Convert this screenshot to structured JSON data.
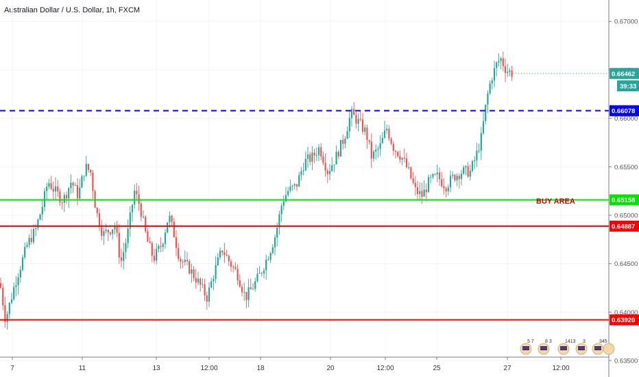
{
  "chart_title": "Australian Dollar / U.S. Dollar, 1h, FXCM",
  "colors": {
    "up": "#26a69a",
    "down": "#ef5350",
    "blue": "#0000ff",
    "green": "#00e600",
    "red": "#ff0000"
  },
  "chart_data": {
    "type": "candlestick",
    "title": "Australian Dollar / U.S. Dollar, 1h, FXCM",
    "ylim": [
      0.635,
      0.6715
    ],
    "y_ticks": [
      "0.67000",
      "0.66500",
      "0.66000",
      "0.65500",
      "0.65000",
      "0.64500",
      "0.64000",
      "0.63500"
    ],
    "x_ticks": [
      "7",
      "11",
      "13",
      "12:00",
      "18",
      "20",
      "12:00",
      "25",
      "27",
      "12:00"
    ],
    "price_path": [
      [
        0,
        0.643
      ],
      [
        8,
        0.6392
      ],
      [
        22,
        0.643
      ],
      [
        40,
        0.647
      ],
      [
        52,
        0.6485
      ],
      [
        62,
        0.651
      ],
      [
        70,
        0.6535
      ],
      [
        80,
        0.6525
      ],
      [
        92,
        0.6515
      ],
      [
        104,
        0.6535
      ],
      [
        114,
        0.652
      ],
      [
        124,
        0.655
      ],
      [
        132,
        0.6545
      ],
      [
        140,
        0.6505
      ],
      [
        150,
        0.648
      ],
      [
        160,
        0.6485
      ],
      [
        168,
        0.649
      ],
      [
        176,
        0.645
      ],
      [
        186,
        0.648
      ],
      [
        196,
        0.6525
      ],
      [
        204,
        0.651
      ],
      [
        214,
        0.6475
      ],
      [
        224,
        0.6455
      ],
      [
        236,
        0.647
      ],
      [
        246,
        0.65
      ],
      [
        254,
        0.648
      ],
      [
        262,
        0.6455
      ],
      [
        276,
        0.6445
      ],
      [
        290,
        0.643
      ],
      [
        302,
        0.6415
      ],
      [
        312,
        0.644
      ],
      [
        324,
        0.6465
      ],
      [
        336,
        0.645
      ],
      [
        346,
        0.644
      ],
      [
        358,
        0.6415
      ],
      [
        368,
        0.6425
      ],
      [
        380,
        0.644
      ],
      [
        392,
        0.646
      ],
      [
        402,
        0.648
      ],
      [
        412,
        0.6515
      ],
      [
        420,
        0.6525
      ],
      [
        432,
        0.653
      ],
      [
        444,
        0.6555
      ],
      [
        456,
        0.656
      ],
      [
        466,
        0.657
      ],
      [
        478,
        0.6545
      ],
      [
        490,
        0.656
      ],
      [
        502,
        0.658
      ],
      [
        512,
        0.6605
      ],
      [
        524,
        0.6595
      ],
      [
        534,
        0.6585
      ],
      [
        542,
        0.656
      ],
      [
        554,
        0.657
      ],
      [
        564,
        0.659
      ],
      [
        574,
        0.657
      ],
      [
        586,
        0.656
      ],
      [
        596,
        0.6545
      ],
      [
        606,
        0.6525
      ],
      [
        616,
        0.652
      ],
      [
        626,
        0.6535
      ],
      [
        638,
        0.654
      ],
      [
        650,
        0.653
      ],
      [
        662,
        0.654
      ],
      [
        674,
        0.6545
      ],
      [
        686,
        0.6545
      ],
      [
        694,
        0.656
      ],
      [
        702,
        0.658
      ],
      [
        710,
        0.662
      ],
      [
        716,
        0.664
      ],
      [
        724,
        0.6655
      ],
      [
        730,
        0.6662
      ],
      [
        738,
        0.665
      ],
      [
        748,
        0.6646
      ]
    ],
    "last_price": "0.66462",
    "countdown": "39:33",
    "levels": [
      {
        "price": 0.66078,
        "label": "0.66078",
        "style": "dashed",
        "color": "#0000ff"
      },
      {
        "price": 0.65158,
        "label": "0.65158",
        "style": "solid",
        "color": "#00e600"
      },
      {
        "price": 0.64887,
        "label": "0.64887",
        "style": "solid",
        "color": "#ff0000"
      },
      {
        "price": 0.6392,
        "label": "0.63920",
        "style": "solid",
        "color": "#ff0000"
      }
    ],
    "annotation": "BUY AREA",
    "events": [
      "5",
      "7",
      "8",
      "3",
      "1413",
      "3",
      "345"
    ]
  }
}
